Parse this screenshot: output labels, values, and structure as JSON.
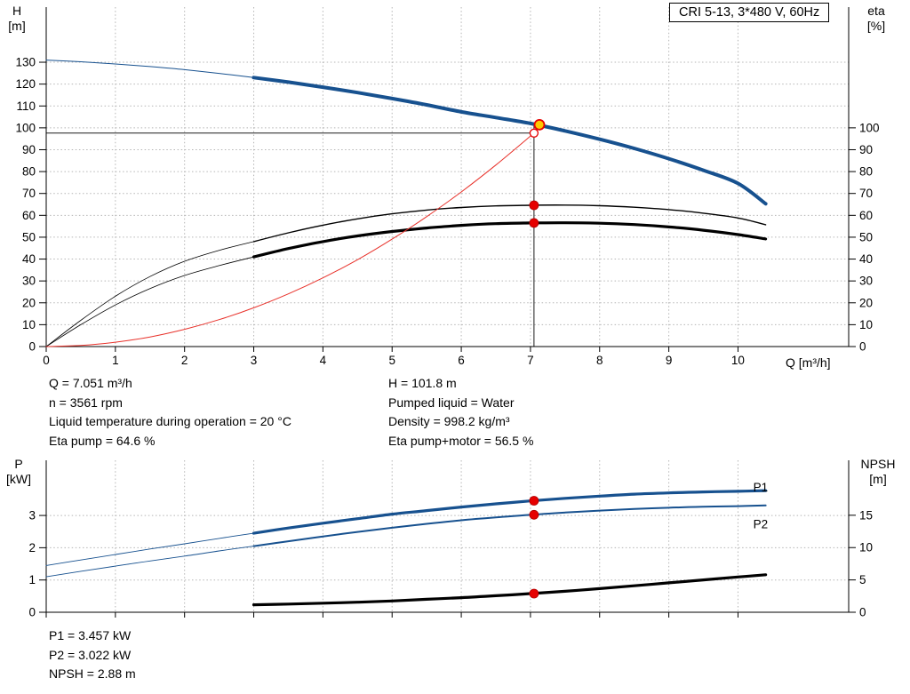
{
  "title_box": {
    "label": "CRI 5-13, 3*480 V, 60Hz"
  },
  "axis_corner_labels": {
    "top_left": [
      "H",
      "[m]"
    ],
    "top_right": [
      "eta",
      "[%]"
    ],
    "bottom_left": [
      "P",
      "[kW]"
    ],
    "bottom_right": [
      "NPSH",
      "[m]"
    ],
    "x_axis": "Q [m³/h]"
  },
  "info_top": {
    "left": [
      "Q = 7.051 m³/h",
      "n = 3561 rpm",
      "Liquid temperature during operation = 20 °C",
      "Eta pump = 64.6 %"
    ],
    "right": [
      "H = 101.8 m",
      "Pumped liquid = Water",
      "Density = 998.2 kg/m³",
      "Eta pump+motor = 56.5 %"
    ]
  },
  "info_bottom": [
    "P1 = 3.457 kW",
    "P2 = 3.022 kW",
    "NPSH = 2.88 m"
  ],
  "colors": {
    "curve_blue": "#17518f",
    "curve_black": "#000000",
    "curve_red": "#e8312a",
    "marker_red": "#e60000",
    "duty_yellow": "#ffc800",
    "grid_gray": "#b5b5b5"
  },
  "chart_data": [
    {
      "type": "line",
      "name": "qh-performance",
      "title": "CRI 5-13, 3*480 V, 60Hz",
      "x": {
        "label": "Q [m³/h]",
        "min": 0,
        "max": 11.6,
        "ticks": [
          0,
          1,
          2,
          3,
          4,
          5,
          6,
          7,
          8,
          9,
          10
        ],
        "show_labels": true
      },
      "y_left": {
        "label": "H [m]",
        "min": 0,
        "max": 155.2,
        "ticks": [
          0,
          10,
          20,
          30,
          40,
          50,
          60,
          70,
          80,
          90,
          100,
          110,
          120,
          130
        ]
      },
      "y_right": {
        "label": "eta [%]",
        "min": 0,
        "max": 155.2,
        "ticks": [
          0,
          10,
          20,
          30,
          40,
          50,
          60,
          70,
          80,
          90,
          100
        ]
      },
      "guides": {
        "hline": 97.6,
        "vline_q": 7.051,
        "vline_top": 101.5
      },
      "series": [
        {
          "name": "head",
          "axis": "left",
          "color": "#17518f",
          "thin_width": 1,
          "width": 4,
          "split_q": 3,
          "points": [
            [
              0,
              131
            ],
            [
              0.5,
              130.2
            ],
            [
              1,
              129.2
            ],
            [
              1.5,
              128
            ],
            [
              2,
              126.6
            ],
            [
              2.5,
              124.9
            ],
            [
              3,
              123
            ],
            [
              3.5,
              120.9
            ],
            [
              4,
              118.6
            ],
            [
              4.5,
              116.1
            ],
            [
              5,
              113.4
            ],
            [
              5.5,
              110.5
            ],
            [
              6,
              107.3
            ],
            [
              6.5,
              104.7
            ],
            [
              7,
              102
            ],
            [
              7.5,
              98.6
            ],
            [
              8,
              94.8
            ],
            [
              8.5,
              90.6
            ],
            [
              9,
              85.9
            ],
            [
              9.5,
              80.6
            ],
            [
              10,
              74.6
            ],
            [
              10.4,
              65.3
            ]
          ]
        },
        {
          "name": "eta-pump",
          "axis": "right",
          "color": "#000000",
          "thin_width": 0.8,
          "width": 1.4,
          "split_q": 3,
          "points": [
            [
              0,
              0
            ],
            [
              0.5,
              12
            ],
            [
              1,
              23
            ],
            [
              1.5,
              32
            ],
            [
              2,
              39
            ],
            [
              2.5,
              44
            ],
            [
              3,
              48
            ],
            [
              3.5,
              52
            ],
            [
              4,
              55.5
            ],
            [
              4.5,
              58.4
            ],
            [
              5,
              60.7
            ],
            [
              5.5,
              62.4
            ],
            [
              6,
              63.6
            ],
            [
              6.5,
              64.3
            ],
            [
              7,
              64.6
            ],
            [
              7.5,
              64.7
            ],
            [
              8,
              64.4
            ],
            [
              8.5,
              63.7
            ],
            [
              9,
              62.6
            ],
            [
              9.5,
              61
            ],
            [
              10,
              58.8
            ],
            [
              10.4,
              55.7
            ]
          ]
        },
        {
          "name": "eta-pump-motor",
          "axis": "right",
          "color": "#000000",
          "thin_width": 0.8,
          "width": 3.2,
          "split_q": 3,
          "points": [
            [
              0,
              0
            ],
            [
              0.5,
              10
            ],
            [
              1,
              19
            ],
            [
              1.5,
              26.5
            ],
            [
              2,
              32.5
            ],
            [
              2.5,
              37
            ],
            [
              3,
              41
            ],
            [
              3.5,
              44.8
            ],
            [
              4,
              48
            ],
            [
              4.5,
              50.6
            ],
            [
              5,
              52.6
            ],
            [
              5.5,
              54.2
            ],
            [
              6,
              55.4
            ],
            [
              6.5,
              56.2
            ],
            [
              7,
              56.5
            ],
            [
              7.5,
              56.6
            ],
            [
              8,
              56.4
            ],
            [
              8.5,
              55.8
            ],
            [
              9,
              54.7
            ],
            [
              9.5,
              53.2
            ],
            [
              10,
              51.2
            ],
            [
              10.4,
              49.2
            ]
          ]
        },
        {
          "name": "duty-parabola",
          "axis": "left",
          "color": "#e8312a",
          "width": 1,
          "points": [
            [
              0,
              0
            ],
            [
              0.5,
              0.5
            ],
            [
              1,
              2
            ],
            [
              1.5,
              4.4
            ],
            [
              2,
              7.9
            ],
            [
              2.5,
              12.3
            ],
            [
              3,
              17.7
            ],
            [
              3.5,
              24.1
            ],
            [
              4,
              31.4
            ],
            [
              4.5,
              39.7
            ],
            [
              5,
              49.1
            ],
            [
              5.5,
              59.4
            ],
            [
              6,
              70.7
            ],
            [
              6.5,
              83
            ],
            [
              7.051,
              97.6
            ]
          ]
        }
      ],
      "markers": [
        {
          "type": "dot",
          "axis": "right",
          "q": 7.051,
          "v": 64.6
        },
        {
          "type": "dot",
          "axis": "right",
          "q": 7.051,
          "v": 56.5
        },
        {
          "type": "open",
          "axis": "left",
          "q": 7.051,
          "v": 97.6
        },
        {
          "type": "duty",
          "axis": "left",
          "q": 7.13,
          "v": 101.4
        }
      ]
    },
    {
      "type": "line",
      "name": "power-npsh",
      "x": {
        "label": "",
        "min": 0,
        "max": 11.6,
        "ticks": [
          0,
          1,
          2,
          3,
          4,
          5,
          6,
          7,
          8,
          9,
          10
        ],
        "show_labels": false
      },
      "y_left": {
        "label": "P [kW]",
        "min": 0,
        "max": 4.71,
        "ticks": [
          0,
          1,
          2,
          3
        ]
      },
      "y_right": {
        "label": "NPSH [m]",
        "min": 0,
        "max": 23.5,
        "ticks": [
          0,
          5,
          10,
          15
        ]
      },
      "series": [
        {
          "name": "p1",
          "axis": "left",
          "color": "#17518f",
          "thin_width": 0.9,
          "width": 3.2,
          "split_q": 3,
          "points": [
            [
              0,
              1.45
            ],
            [
              0.5,
              1.62
            ],
            [
              1,
              1.79
            ],
            [
              1.5,
              1.96
            ],
            [
              2,
              2.12
            ],
            [
              2.5,
              2.29
            ],
            [
              3,
              2.45
            ],
            [
              3.5,
              2.61
            ],
            [
              4,
              2.76
            ],
            [
              4.5,
              2.9
            ],
            [
              5,
              3.04
            ],
            [
              5.5,
              3.15
            ],
            [
              6,
              3.26
            ],
            [
              6.5,
              3.36
            ],
            [
              7,
              3.45
            ],
            [
              7.5,
              3.53
            ],
            [
              8,
              3.6
            ],
            [
              8.5,
              3.66
            ],
            [
              9,
              3.7
            ],
            [
              9.5,
              3.73
            ],
            [
              10,
              3.75
            ],
            [
              10.4,
              3.77
            ]
          ]
        },
        {
          "name": "p2",
          "axis": "left",
          "color": "#17518f",
          "thin_width": 0.9,
          "width": 2,
          "split_q": 3,
          "points": [
            [
              0,
              1.1
            ],
            [
              0.5,
              1.27
            ],
            [
              1,
              1.43
            ],
            [
              1.5,
              1.59
            ],
            [
              2,
              1.74
            ],
            [
              2.5,
              1.9
            ],
            [
              3,
              2.05
            ],
            [
              3.5,
              2.2
            ],
            [
              4,
              2.35
            ],
            [
              4.5,
              2.49
            ],
            [
              5,
              2.62
            ],
            [
              5.5,
              2.74
            ],
            [
              6,
              2.85
            ],
            [
              6.5,
              2.94
            ],
            [
              7,
              3.02
            ],
            [
              7.5,
              3.09
            ],
            [
              8,
              3.15
            ],
            [
              8.5,
              3.2
            ],
            [
              9,
              3.24
            ],
            [
              9.5,
              3.27
            ],
            [
              10,
              3.29
            ],
            [
              10.4,
              3.31
            ]
          ]
        },
        {
          "name": "npsh",
          "axis": "right",
          "color": "#000000",
          "width": 3.2,
          "points": [
            [
              3,
              1.15
            ],
            [
              3.5,
              1.27
            ],
            [
              4,
              1.4
            ],
            [
              4.5,
              1.55
            ],
            [
              5,
              1.75
            ],
            [
              5.5,
              2
            ],
            [
              6,
              2.25
            ],
            [
              6.5,
              2.55
            ],
            [
              7,
              2.88
            ],
            [
              7.5,
              3.25
            ],
            [
              8,
              3.65
            ],
            [
              8.5,
              4.1
            ],
            [
              9,
              4.55
            ],
            [
              9.5,
              5
            ],
            [
              10,
              5.45
            ],
            [
              10.4,
              5.8
            ]
          ]
        }
      ],
      "markers": [
        {
          "type": "dot",
          "axis": "left",
          "q": 7.051,
          "v": 3.457
        },
        {
          "type": "dot",
          "axis": "left",
          "q": 7.051,
          "v": 3.022
        },
        {
          "type": "dot",
          "axis": "right",
          "q": 7.051,
          "v": 2.88
        }
      ],
      "series_labels": [
        {
          "text": "P1",
          "q": 10.22,
          "v": 3.75
        },
        {
          "text": "P2",
          "q": 10.22,
          "v": 2.6
        }
      ]
    }
  ]
}
